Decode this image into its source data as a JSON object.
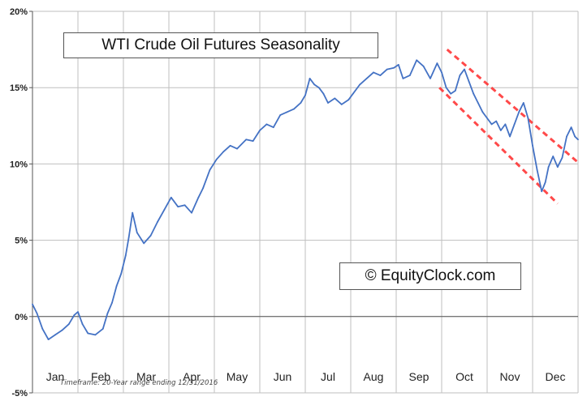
{
  "chart_data": {
    "type": "line",
    "title": "WTI Crude Oil Futures Seasonality",
    "watermark": "© EquityClock.com",
    "footnote": "Timeframe: 20-Year range ending 12/31/2016",
    "xlabel": "",
    "ylabel": "",
    "y_ticks": [
      "20%",
      "15%",
      "10%",
      "5%",
      "0%",
      "-5%"
    ],
    "y_tick_values": [
      20,
      15,
      10,
      5,
      0,
      -5
    ],
    "ylim": [
      -5,
      20
    ],
    "x_categories": [
      "Jan",
      "Feb",
      "Mar",
      "Apr",
      "May",
      "Jun",
      "Jul",
      "Aug",
      "Sep",
      "Oct",
      "Nov",
      "Dec"
    ],
    "xlim": [
      0,
      12
    ],
    "grid": true,
    "series": [
      {
        "color": "#4472c4",
        "points": [
          [
            0.0,
            0.8
          ],
          [
            0.1,
            0.2
          ],
          [
            0.22,
            -0.8
          ],
          [
            0.35,
            -1.5
          ],
          [
            0.5,
            -1.2
          ],
          [
            0.65,
            -0.9
          ],
          [
            0.8,
            -0.5
          ],
          [
            0.92,
            0.1
          ],
          [
            1.0,
            0.3
          ],
          [
            1.1,
            -0.5
          ],
          [
            1.22,
            -1.1
          ],
          [
            1.38,
            -1.2
          ],
          [
            1.55,
            -0.8
          ],
          [
            1.65,
            0.2
          ],
          [
            1.75,
            0.9
          ],
          [
            1.85,
            2.0
          ],
          [
            1.95,
            2.8
          ],
          [
            2.05,
            4.0
          ],
          [
            2.12,
            5.2
          ],
          [
            2.2,
            6.8
          ],
          [
            2.3,
            5.5
          ],
          [
            2.45,
            4.8
          ],
          [
            2.6,
            5.3
          ],
          [
            2.75,
            6.2
          ],
          [
            2.9,
            7.0
          ],
          [
            3.05,
            7.8
          ],
          [
            3.2,
            7.2
          ],
          [
            3.35,
            7.3
          ],
          [
            3.5,
            6.8
          ],
          [
            3.65,
            7.8
          ],
          [
            3.75,
            8.4
          ],
          [
            3.9,
            9.6
          ],
          [
            4.05,
            10.3
          ],
          [
            4.2,
            10.8
          ],
          [
            4.35,
            11.2
          ],
          [
            4.5,
            11.0
          ],
          [
            4.7,
            11.6
          ],
          [
            4.85,
            11.5
          ],
          [
            5.0,
            12.2
          ],
          [
            5.15,
            12.6
          ],
          [
            5.3,
            12.4
          ],
          [
            5.45,
            13.2
          ],
          [
            5.6,
            13.4
          ],
          [
            5.75,
            13.6
          ],
          [
            5.9,
            14.0
          ],
          [
            6.0,
            14.5
          ],
          [
            6.1,
            15.6
          ],
          [
            6.2,
            15.2
          ],
          [
            6.3,
            15.0
          ],
          [
            6.4,
            14.6
          ],
          [
            6.5,
            14.0
          ],
          [
            6.65,
            14.3
          ],
          [
            6.8,
            13.9
          ],
          [
            6.95,
            14.2
          ],
          [
            7.05,
            14.6
          ],
          [
            7.2,
            15.2
          ],
          [
            7.35,
            15.6
          ],
          [
            7.5,
            16.0
          ],
          [
            7.65,
            15.8
          ],
          [
            7.8,
            16.2
          ],
          [
            7.95,
            16.3
          ],
          [
            8.05,
            16.5
          ],
          [
            8.15,
            15.6
          ],
          [
            8.3,
            15.8
          ],
          [
            8.45,
            16.8
          ],
          [
            8.6,
            16.4
          ],
          [
            8.75,
            15.6
          ],
          [
            8.9,
            16.6
          ],
          [
            9.0,
            16.0
          ],
          [
            9.1,
            15.0
          ],
          [
            9.2,
            14.6
          ],
          [
            9.3,
            14.8
          ],
          [
            9.4,
            15.8
          ],
          [
            9.5,
            16.2
          ],
          [
            9.6,
            15.4
          ],
          [
            9.7,
            14.6
          ],
          [
            9.8,
            14.0
          ],
          [
            9.9,
            13.4
          ],
          [
            10.0,
            13.0
          ],
          [
            10.1,
            12.6
          ],
          [
            10.2,
            12.8
          ],
          [
            10.3,
            12.2
          ],
          [
            10.4,
            12.6
          ],
          [
            10.5,
            11.8
          ],
          [
            10.6,
            12.6
          ],
          [
            10.7,
            13.4
          ],
          [
            10.8,
            14.0
          ],
          [
            10.9,
            13.0
          ],
          [
            11.0,
            11.2
          ],
          [
            11.1,
            9.6
          ],
          [
            11.2,
            8.2
          ],
          [
            11.28,
            8.8
          ],
          [
            11.35,
            9.8
          ],
          [
            11.45,
            10.5
          ],
          [
            11.55,
            9.8
          ],
          [
            11.65,
            10.4
          ],
          [
            11.75,
            11.8
          ],
          [
            11.85,
            12.4
          ],
          [
            11.93,
            11.8
          ],
          [
            12.0,
            11.6
          ]
        ]
      }
    ],
    "annotations": [
      {
        "type": "trend-channel-line",
        "color": "#ff2a2a",
        "start": [
          9.12,
          17.5
        ],
        "end": [
          12.0,
          10.1
        ]
      },
      {
        "type": "trend-channel-line",
        "color": "#ff2a2a",
        "start": [
          8.95,
          15.0
        ],
        "end": [
          11.55,
          7.4
        ]
      }
    ]
  }
}
